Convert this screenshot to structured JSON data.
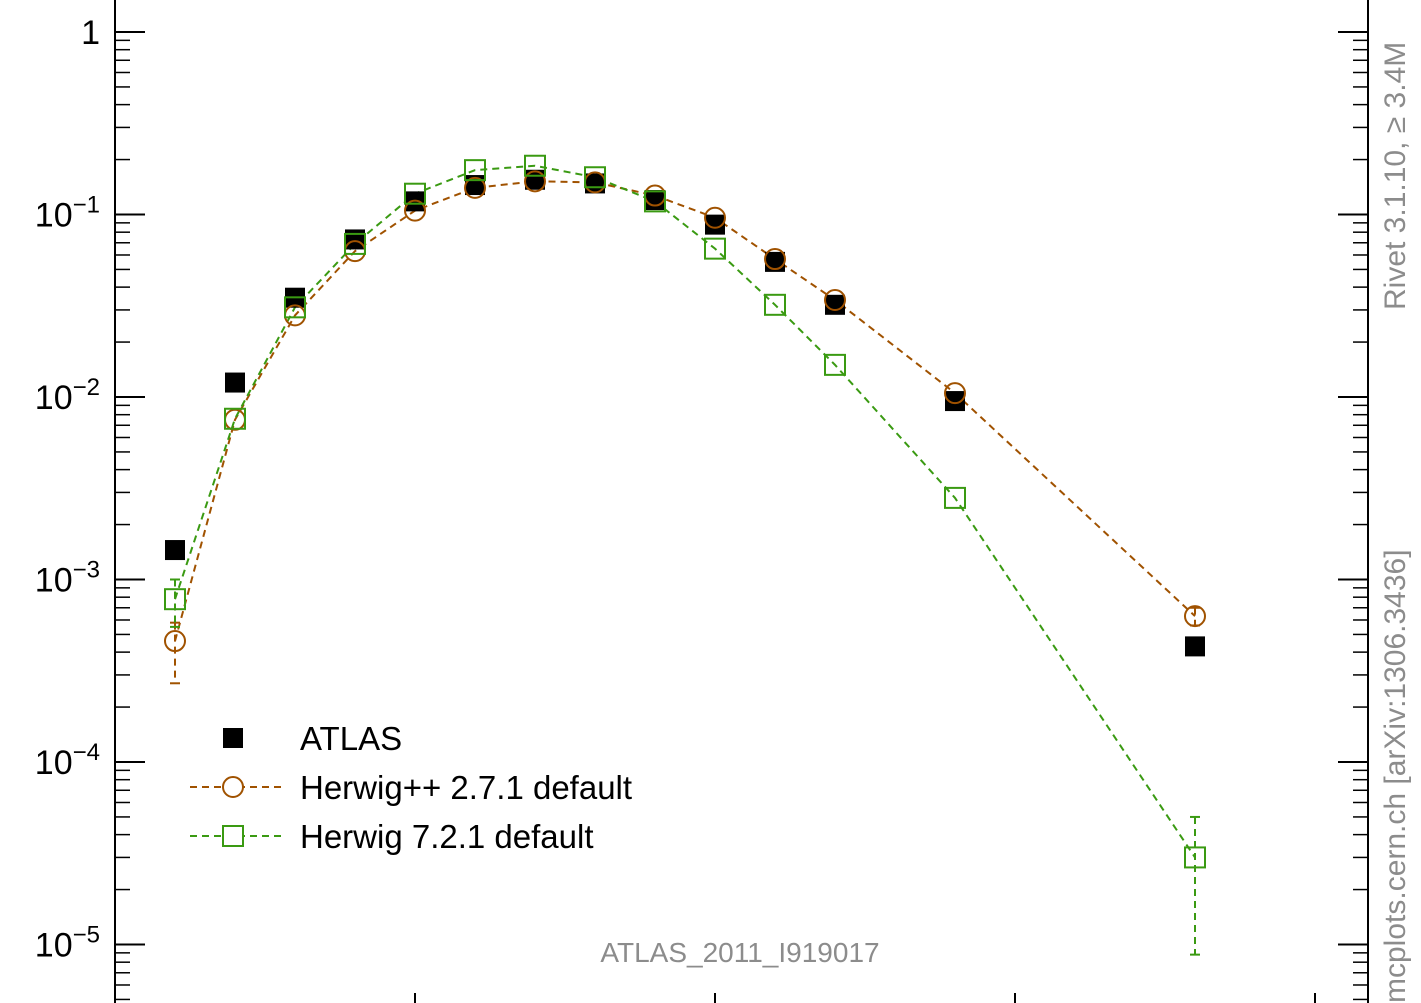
{
  "colors": {
    "atlas": "#000000",
    "herwig_pp": "#a05200",
    "herwig7": "#3a9a12",
    "watermark": "#8c8c8c"
  },
  "watermark_text": "ATLAS_2011_I919017",
  "side_text_top": "Rivet 3.1.10, ≥ 3.4M",
  "side_text_bottom": "mcplots.cern.ch [arXiv:1306.3436]",
  "chart_data": {
    "type": "scatter",
    "y_scale": "log",
    "ylim": [
      8e-06,
      1.3
    ],
    "xlim": [
      0,
      40
    ],
    "y_ticks": [
      {
        "value": 1,
        "base": "1",
        "exp": ""
      },
      {
        "value": 0.1,
        "base": "10",
        "exp": "−1"
      },
      {
        "value": 0.01,
        "base": "10",
        "exp": "−2"
      },
      {
        "value": 0.001,
        "base": "10",
        "exp": "−3"
      },
      {
        "value": 0.0001,
        "base": "10",
        "exp": "−4"
      },
      {
        "value": 1e-05,
        "base": "10",
        "exp": "−5"
      }
    ],
    "x_major_ticks": [
      0,
      10,
      20,
      30,
      40
    ],
    "legend": {
      "placement": "bottom-left",
      "entries": [
        "ATLAS",
        "Herwig++ 2.7.1 default",
        "Herwig 7.2.1 default"
      ]
    },
    "series": [
      {
        "name": "ATLAS",
        "marker": "filled-square",
        "x": [
          2,
          4,
          6,
          8,
          10,
          12,
          14,
          16,
          18,
          20,
          22,
          24,
          28,
          36
        ],
        "y": [
          0.00145,
          0.012,
          0.035,
          0.073,
          0.118,
          0.145,
          0.155,
          0.148,
          0.12,
          0.088,
          0.055,
          0.032,
          0.0095,
          0.00043
        ]
      },
      {
        "name": "Herwig++ 2.7.1 default",
        "marker": "open-circle",
        "x": [
          2,
          4,
          6,
          8,
          10,
          12,
          14,
          16,
          18,
          20,
          22,
          24,
          28,
          36
        ],
        "y": [
          0.00046,
          0.0075,
          0.028,
          0.063,
          0.105,
          0.14,
          0.152,
          0.15,
          0.127,
          0.096,
          0.057,
          0.034,
          0.0105,
          0.00063
        ],
        "y_err_low": [
          0.00027,
          null,
          null,
          null,
          null,
          null,
          null,
          null,
          null,
          null,
          null,
          null,
          null,
          0.00056
        ],
        "y_err_high": [
          0.00058,
          null,
          null,
          null,
          null,
          null,
          null,
          null,
          null,
          null,
          null,
          null,
          null,
          0.0007
        ]
      },
      {
        "name": "Herwig 7.2.1 default",
        "marker": "open-square",
        "x": [
          2,
          4,
          6,
          8,
          10,
          12,
          14,
          16,
          18,
          20,
          22,
          24,
          28,
          36
        ],
        "y": [
          0.00078,
          0.0076,
          0.031,
          0.069,
          0.13,
          0.175,
          0.185,
          0.16,
          0.118,
          0.065,
          0.032,
          0.015,
          0.0028,
          3e-05
        ],
        "y_err_low": [
          0.00055,
          null,
          null,
          null,
          null,
          null,
          null,
          null,
          null,
          null,
          null,
          null,
          null,
          8.8e-06
        ],
        "y_err_high": [
          0.001,
          null,
          null,
          null,
          null,
          null,
          null,
          null,
          null,
          null,
          null,
          null,
          null,
          5e-05
        ]
      }
    ]
  }
}
